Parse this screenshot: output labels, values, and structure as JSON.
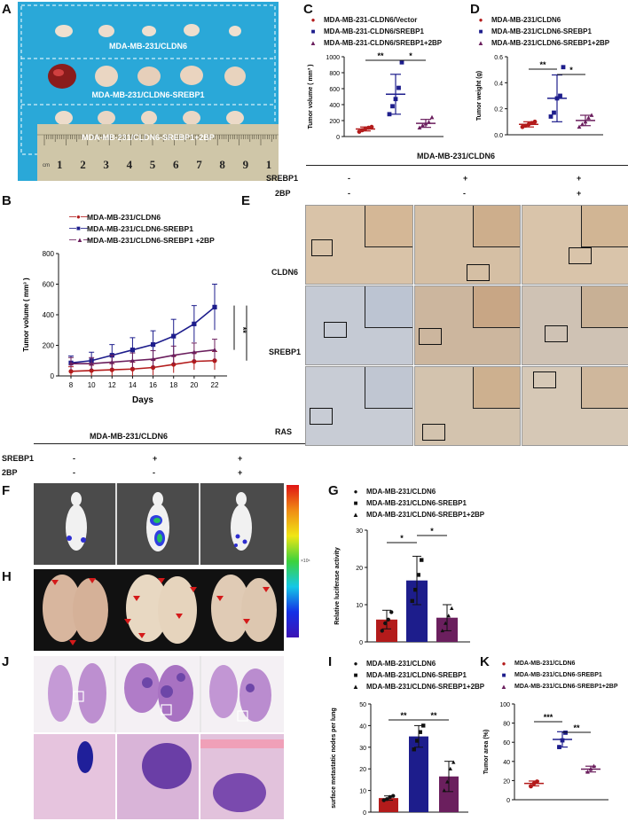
{
  "panels": {
    "A": "A",
    "B": "B",
    "C": "C",
    "D": "D",
    "E": "E",
    "F": "F",
    "G": "G",
    "H": "H",
    "I": "I",
    "J": "J",
    "K": "K"
  },
  "colors": {
    "red": "#b31b1b",
    "blue": "#1d1d8c",
    "purple": "#6b1f5e",
    "ruler": "#cfc6a8",
    "cloth": "#2aa8d8"
  },
  "panel_A": {
    "labels": [
      "MDA-MB-231/CLDN6",
      "MDA-MB-231/CLDN6-SREBP1",
      "MDA-MB-231/CLDN6-SREBP1+2BP"
    ],
    "ruler_unit": "cm",
    "ruler_numbers": [
      "1",
      "2",
      "3",
      "4",
      "5",
      "6",
      "7",
      "8",
      "9",
      "1"
    ]
  },
  "panel_C": {
    "legend": [
      "MDA-MB-231-CLDN6/Vector",
      "MDA-MB-231-CLDN6/SREBP1",
      "MDA-MB-231-CLDN6/SREBP1+2BP"
    ],
    "sig": [
      "**",
      "*"
    ]
  },
  "panel_D": {
    "legend": [
      "MDA-MB-231/CLDN6",
      "MDA-MB-231/CLDN6-SREBP1",
      "MDA-MB-231/CLDN6-SREBP1+2BP"
    ],
    "sig": [
      "**",
      "*"
    ]
  },
  "panel_B": {
    "legend": [
      "MDA-MB-231/CLDN6",
      "MDA-MB-231/CLDN6-SREBP1",
      "MDA-MB-231/CLDN6-SREBP1 +2BP"
    ],
    "sig": [
      "**",
      "**"
    ]
  },
  "panel_E": {
    "group": "MDA-MB-231/CLDN6",
    "factors": [
      {
        "name": "SREBP1",
        "values": [
          "-",
          "+",
          "+"
        ]
      },
      {
        "name": "2BP",
        "values": [
          "-",
          "-",
          "+"
        ]
      }
    ],
    "rows": [
      "CLDN6",
      "SREBP1",
      "RAS"
    ]
  },
  "middle_group": {
    "group": "MDA-MB-231/CLDN6",
    "factors": [
      {
        "name": "SREBP1",
        "values": [
          "-",
          "+",
          "+"
        ]
      },
      {
        "name": "2BP",
        "values": [
          "-",
          "-",
          "+"
        ]
      }
    ]
  },
  "panel_F": {
    "colorbar_unit": "×10⁶"
  },
  "panel_G": {
    "legend": [
      "MDA-MB-231/CLDN6",
      "MDA-MB-231/CLDN6-SREBP1",
      "MDA-MB-231/CLDN6-SREBP1+2BP"
    ],
    "sig": [
      "*",
      "*"
    ]
  },
  "panel_I": {
    "legend": [
      "MDA-MB-231/CLDN6",
      "MDA-MB-231/CLDN6-SREBP1",
      "MDA-MB-231/CLDN6-SREBP1+2BP"
    ],
    "sig": [
      "**",
      "**"
    ]
  },
  "panel_K": {
    "legend": [
      "MDA-MB-231/CLDN6",
      "MDA-MB-231/CLDN6-SREBP1",
      "MDA-MB-231/CLDN6-SREBP1+2BP"
    ],
    "sig": [
      "***",
      "**"
    ]
  },
  "chart_data": [
    {
      "id": "C",
      "type": "scatter",
      "ylabel": "Tumor volume ( mm³ )",
      "ylim": [
        0,
        1000
      ],
      "yticks": [
        "0",
        "200",
        "400",
        "600",
        "800",
        "1000"
      ],
      "groups": [
        {
          "name": "MDA-MB-231-CLDN6/Vector",
          "points": [
            60,
            80,
            100,
            110,
            120
          ],
          "mean": 95,
          "sd": 25,
          "marker": "circle",
          "color": "#b31b1b"
        },
        {
          "name": "MDA-MB-231-CLDN6/SREBP1",
          "points": [
            280,
            380,
            470,
            610,
            930
          ],
          "mean": 530,
          "sd": 250,
          "marker": "square",
          "color": "#1d1d8c"
        },
        {
          "name": "MDA-MB-231-CLDN6/SREBP1+2BP",
          "points": [
            110,
            140,
            160,
            180,
            240
          ],
          "mean": 165,
          "sd": 50,
          "marker": "triangle",
          "color": "#6b1f5e"
        }
      ]
    },
    {
      "id": "D",
      "type": "scatter",
      "ylabel": "Tumor weight (g)",
      "ylim": [
        0,
        0.6
      ],
      "yticks": [
        "0.0",
        "0.2",
        "0.4",
        "0.6"
      ],
      "groups": [
        {
          "name": "MDA-MB-231/CLDN6",
          "points": [
            0.06,
            0.07,
            0.08,
            0.09,
            0.1
          ],
          "mean": 0.08,
          "sd": 0.02,
          "marker": "circle",
          "color": "#b31b1b"
        },
        {
          "name": "MDA-MB-231/CLDN6-SREBP1",
          "points": [
            0.14,
            0.17,
            0.28,
            0.3,
            0.52
          ],
          "mean": 0.28,
          "sd": 0.18,
          "marker": "square",
          "color": "#1d1d8c"
        },
        {
          "name": "MDA-MB-231/CLDN6-SREBP1+2BP",
          "points": [
            0.06,
            0.08,
            0.1,
            0.13,
            0.15
          ],
          "mean": 0.11,
          "sd": 0.04,
          "marker": "triangle",
          "color": "#6b1f5e"
        }
      ]
    },
    {
      "id": "B",
      "type": "line",
      "xlabel": "Days",
      "ylabel": "Tumor volume ( mm³ )",
      "x": [
        8,
        10,
        12,
        14,
        16,
        18,
        20,
        22
      ],
      "ylim": [
        0,
        800
      ],
      "yticks": [
        "0",
        "200",
        "400",
        "600",
        "800"
      ],
      "series": [
        {
          "name": "MDA-MB-231/CLDN6",
          "values": [
            30,
            35,
            40,
            45,
            55,
            75,
            95,
            100
          ],
          "err": [
            30,
            35,
            40,
            45,
            50,
            55,
            55,
            60
          ],
          "color": "#b31b1b",
          "marker": "circle"
        },
        {
          "name": "MDA-MB-231/CLDN6-SREBP1",
          "values": [
            85,
            100,
            135,
            170,
            205,
            260,
            340,
            450
          ],
          "err": [
            45,
            55,
            70,
            80,
            90,
            110,
            120,
            150
          ],
          "color": "#1d1d8c",
          "marker": "square"
        },
        {
          "name": "MDA-MB-231/CLDN6-SREBP1 +2BP",
          "values": [
            80,
            80,
            90,
            100,
            110,
            135,
            155,
            170
          ],
          "err": [
            40,
            40,
            45,
            50,
            55,
            60,
            60,
            70
          ],
          "color": "#6b1f5e",
          "marker": "triangle"
        }
      ]
    },
    {
      "id": "G",
      "type": "bar",
      "ylabel": "Relative luciferase activity",
      "ylim": [
        0,
        30
      ],
      "yticks": [
        "0",
        "10",
        "20",
        "30"
      ],
      "groups": [
        {
          "name": "MDA-MB-231/CLDN6",
          "value": 6,
          "sd": 2.5,
          "points": [
            3,
            5,
            6,
            8
          ],
          "color": "#b31b1b",
          "marker": "circle"
        },
        {
          "name": "MDA-MB-231/CLDN6-SREBP1",
          "value": 16.5,
          "sd": 6.5,
          "points": [
            11,
            14,
            18,
            22
          ],
          "color": "#1d1d8c",
          "marker": "square"
        },
        {
          "name": "MDA-MB-231/CLDN6-SREBP1+2BP",
          "value": 6.5,
          "sd": 3.5,
          "points": [
            3,
            5,
            7,
            9
          ],
          "color": "#6b1f5e",
          "marker": "triangle"
        }
      ]
    },
    {
      "id": "I",
      "type": "bar",
      "ylabel": "surface metastatic nodes per lung",
      "ylim": [
        0,
        50
      ],
      "yticks": [
        "0",
        "10",
        "20",
        "30",
        "40",
        "50"
      ],
      "groups": [
        {
          "name": "MDA-MB-231/CLDN6",
          "value": 6.5,
          "sd": 1,
          "points": [
            5.5,
            6,
            7,
            7.5
          ],
          "color": "#b31b1b",
          "marker": "circle"
        },
        {
          "name": "MDA-MB-231/CLDN6-SREBP1",
          "value": 35,
          "sd": 5,
          "points": [
            29,
            33,
            37,
            40
          ],
          "color": "#1d1d8c",
          "marker": "square"
        },
        {
          "name": "MDA-MB-231/CLDN6-SREBP1+2BP",
          "value": 16.5,
          "sd": 7,
          "points": [
            10,
            14,
            20,
            23
          ],
          "color": "#6b1f5e",
          "marker": "triangle"
        }
      ]
    },
    {
      "id": "K",
      "type": "scatter",
      "ylabel": "Tumor area (%)",
      "ylim": [
        0,
        100
      ],
      "yticks": [
        "0",
        "20",
        "40",
        "60",
        "80",
        "100"
      ],
      "groups": [
        {
          "name": "MDA-MB-231/CLDN6",
          "points": [
            14,
            17,
            19
          ],
          "mean": 17,
          "sd": 2.5,
          "marker": "circle",
          "color": "#b31b1b"
        },
        {
          "name": "MDA-MB-231/CLDN6-SREBP1",
          "points": [
            55,
            62,
            70
          ],
          "mean": 63,
          "sd": 8,
          "marker": "square",
          "color": "#1d1d8c"
        },
        {
          "name": "MDA-MB-231/CLDN6-SREBP1+2BP",
          "points": [
            29,
            32,
            35
          ],
          "mean": 32,
          "sd": 3,
          "marker": "triangle",
          "color": "#6b1f5e"
        }
      ]
    }
  ]
}
